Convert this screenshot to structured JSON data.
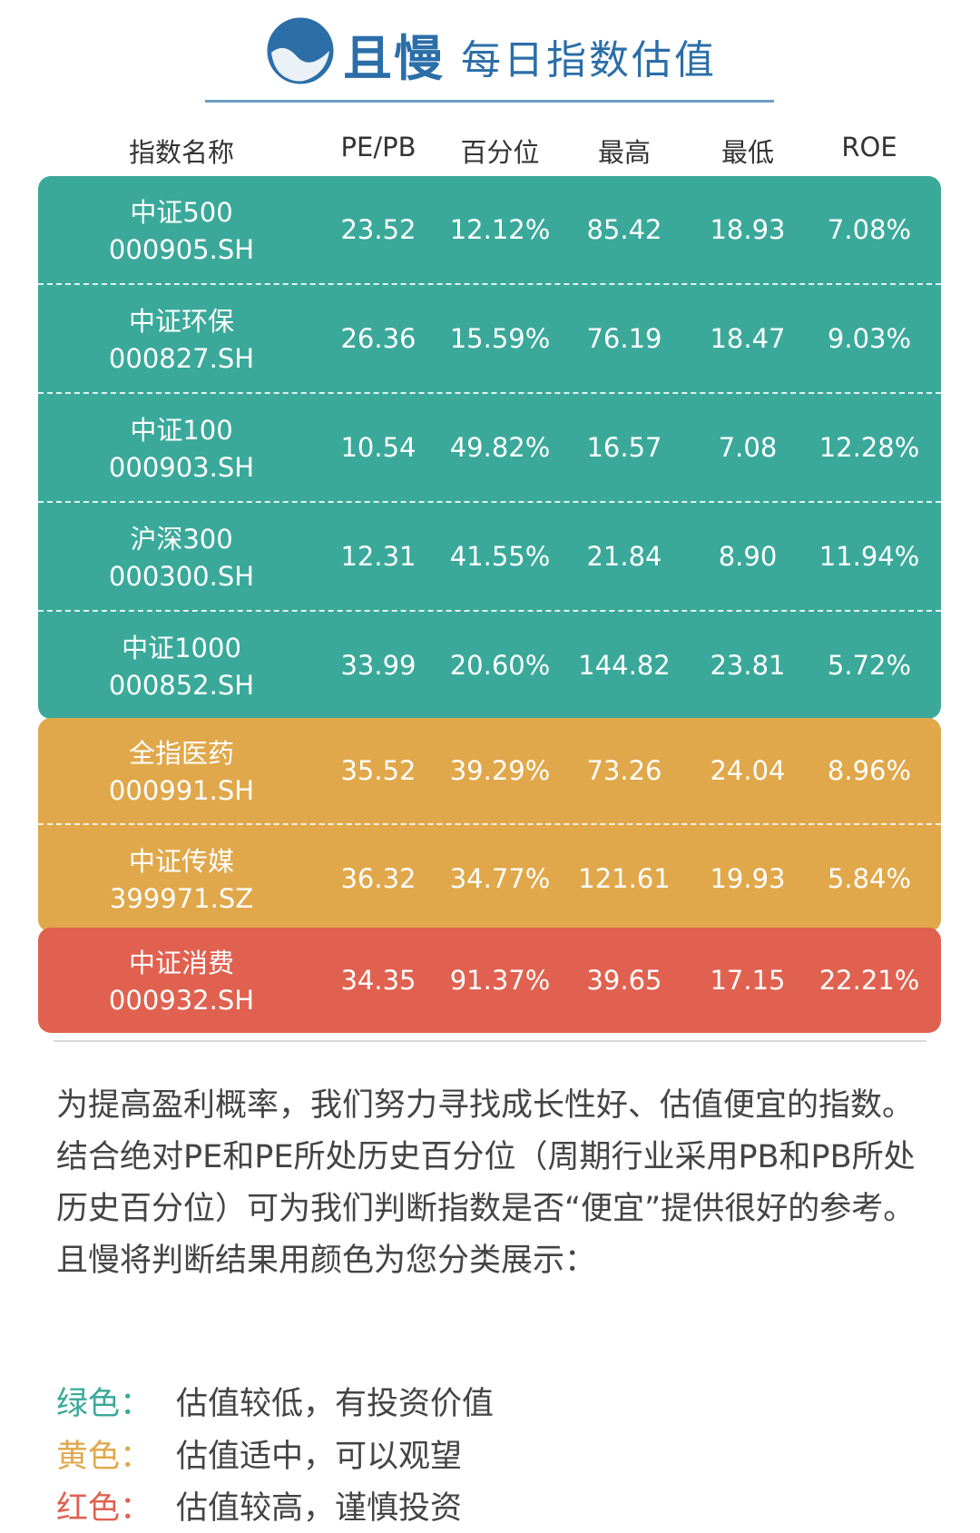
{
  "header": {
    "logo_text": "且慢",
    "title": "每日指数估值"
  },
  "table": {
    "columns": [
      "指数名称",
      "PE/PB",
      "百分位",
      "最高",
      "最低",
      "ROE"
    ],
    "groups": [
      {
        "color": "#3aa99a",
        "rows": [
          {
            "name": "中证500",
            "code": "000905.SH",
            "values": [
              "23.52",
              "12.12%",
              "85.42",
              "18.93",
              "7.08%"
            ]
          },
          {
            "name": "中证环保",
            "code": "000827.SH",
            "values": [
              "26.36",
              "15.59%",
              "76.19",
              "18.47",
              "9.03%"
            ]
          },
          {
            "name": "中证100",
            "code": "000903.SH",
            "values": [
              "10.54",
              "49.82%",
              "16.57",
              "7.08",
              "12.28%"
            ]
          },
          {
            "name": "沪深300",
            "code": "000300.SH",
            "values": [
              "12.31",
              "41.55%",
              "21.84",
              "8.90",
              "11.94%"
            ]
          },
          {
            "name": "中证1000",
            "code": "000852.SH",
            "values": [
              "33.99",
              "20.60%",
              "144.82",
              "23.81",
              "5.72%"
            ]
          }
        ]
      },
      {
        "color": "#e0a84a",
        "rows": [
          {
            "name": "全指医药",
            "code": "000991.SH",
            "values": [
              "35.52",
              "39.29%",
              "73.26",
              "24.04",
              "8.96%"
            ]
          },
          {
            "name": "中证传媒",
            "code": "399971.SZ",
            "values": [
              "36.32",
              "34.77%",
              "121.61",
              "19.93",
              "5.84%"
            ]
          }
        ]
      },
      {
        "color": "#e06150",
        "rows": [
          {
            "name": "中证消费",
            "code": "000932.SH",
            "values": [
              "34.35",
              "91.37%",
              "39.65",
              "17.15",
              "22.21%"
            ]
          }
        ]
      }
    ]
  },
  "description": "为提高盈利概率，我们努力寻找成长性好、估值便宜的指数。结合绝对PE和PE所处历史百分位（周期行业采用PB和PB所处历史百分位）可为我们判断指数是否“便宜”提供很好的参考。且慢将判断结果用颜色为您分类展示：",
  "legend": [
    {
      "label": "绿色：",
      "text": "估值较低，有投资价值",
      "color": "#3aa99a"
    },
    {
      "label": "黄色：",
      "text": "估值适中，可以观望",
      "color": "#e0a84a"
    },
    {
      "label": "红色：",
      "text": "估值较高，谨慎投资",
      "color": "#e06150"
    }
  ]
}
